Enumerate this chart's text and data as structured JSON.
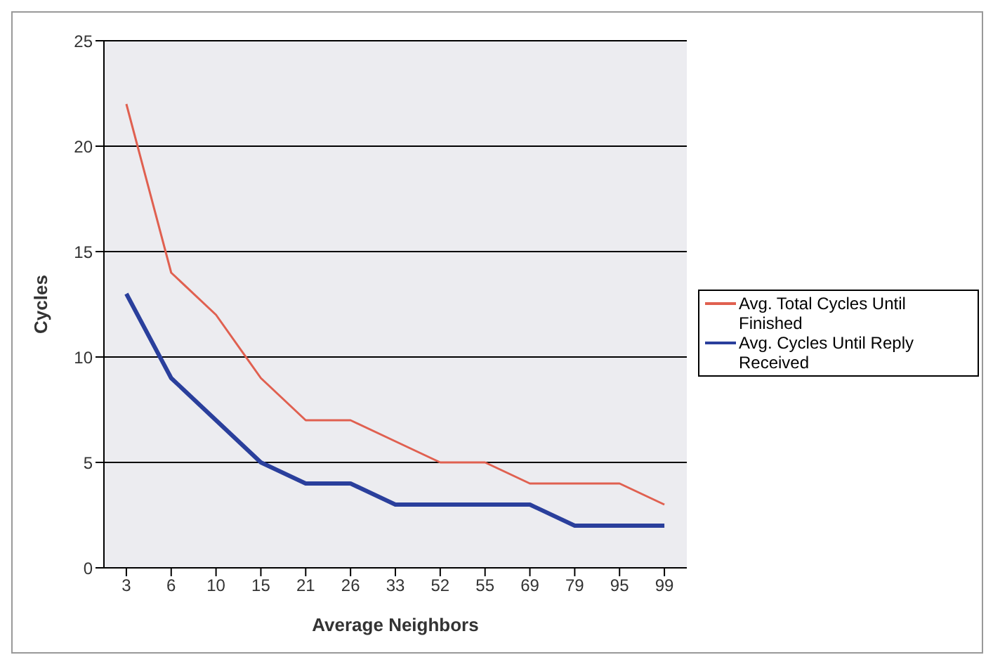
{
  "chart_data": {
    "type": "line",
    "xlabel": "Average Neighbors",
    "ylabel": "Cycles",
    "categories": [
      "3",
      "6",
      "10",
      "15",
      "21",
      "26",
      "33",
      "52",
      "55",
      "69",
      "79",
      "95",
      "99"
    ],
    "series": [
      {
        "name": "Avg. Total Cycles Until Finished",
        "color": "#e06050",
        "values": [
          22,
          14,
          12,
          9,
          7,
          7,
          6,
          5,
          5,
          4,
          4,
          4,
          3
        ]
      },
      {
        "name": "Avg. Cycles Until Reply Received",
        "color": "#2a3f9c",
        "values": [
          13,
          9,
          7,
          5,
          4,
          4,
          3,
          3,
          3,
          3,
          2,
          2,
          2
        ]
      }
    ],
    "ylim": [
      0,
      25
    ],
    "yticks": [
      0,
      5,
      10,
      15,
      20,
      25
    ],
    "grid": "y",
    "legend": "right",
    "marker": "none",
    "line_style": "solid"
  }
}
